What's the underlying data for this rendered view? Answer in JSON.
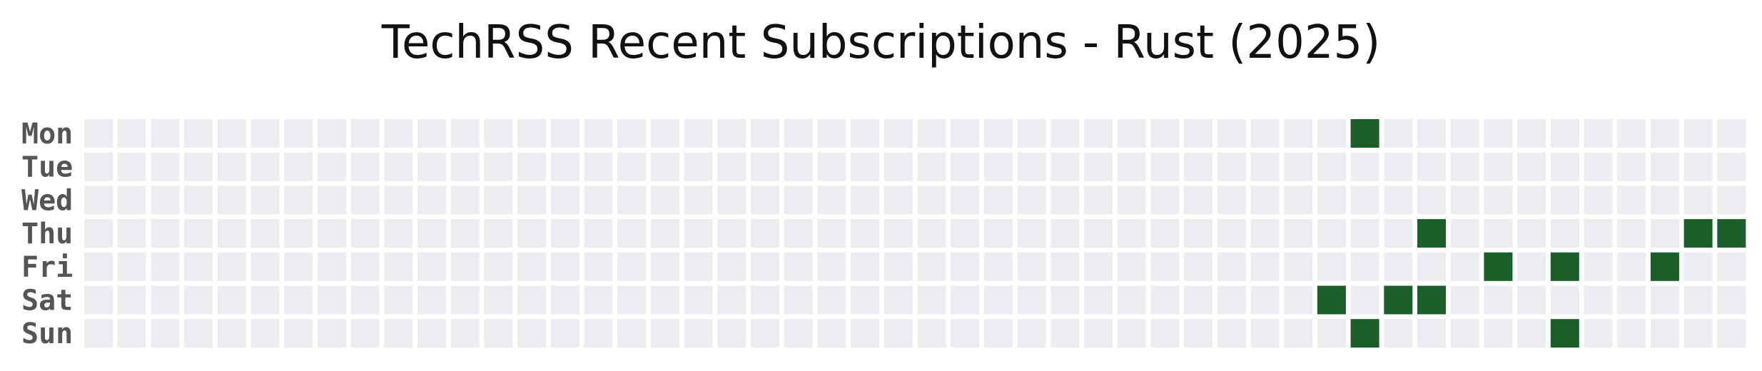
{
  "chart_data": {
    "type": "heatmap",
    "title": "TechRSS Recent Subscriptions - Rust  (2025)",
    "rows": [
      "Mon",
      "Tue",
      "Wed",
      "Thu",
      "Fri",
      "Sat",
      "Sun"
    ],
    "week_count": 50,
    "empty_color": "#ebedf0",
    "active_color": "#1b5e2a",
    "active_cells": [
      {
        "week": 38,
        "day": "Mon",
        "value": 1
      },
      {
        "week": 40,
        "day": "Thu",
        "value": 1
      },
      {
        "week": 48,
        "day": "Thu",
        "value": 1
      },
      {
        "week": 49,
        "day": "Thu",
        "value": 1
      },
      {
        "week": 42,
        "day": "Fri",
        "value": 1
      },
      {
        "week": 44,
        "day": "Fri",
        "value": 1
      },
      {
        "week": 47,
        "day": "Fri",
        "value": 1
      },
      {
        "week": 37,
        "day": "Sat",
        "value": 1
      },
      {
        "week": 39,
        "day": "Sat",
        "value": 1
      },
      {
        "week": 40,
        "day": "Sat",
        "value": 1
      },
      {
        "week": 38,
        "day": "Sun",
        "value": 1
      },
      {
        "week": 44,
        "day": "Sun",
        "value": 1
      }
    ],
    "legend": "none",
    "grid": false
  }
}
